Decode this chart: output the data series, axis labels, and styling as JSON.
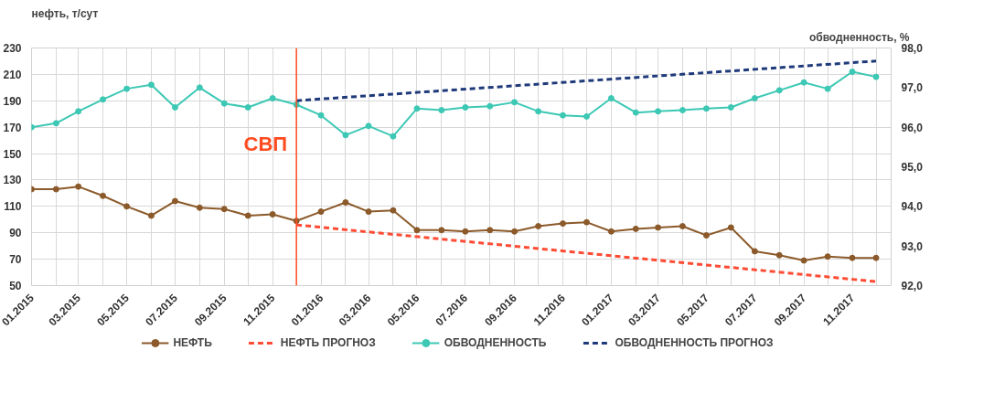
{
  "chart_data": {
    "type": "line",
    "ylabel": "нефть, т/сут",
    "y2label": "обводненность, %",
    "x": [
      "2015-01",
      "2015-02",
      "2015-03",
      "2015-04",
      "2015-05",
      "2015-06",
      "2015-07",
      "2015-08",
      "2015-09",
      "2015-10",
      "2015-11",
      "2015-12",
      "2016-01",
      "2016-02",
      "2016-03",
      "2016-04",
      "2016-05",
      "2016-06",
      "2016-07",
      "2016-08",
      "2016-09",
      "2016-10",
      "2016-11",
      "2016-12",
      "2017-01",
      "2017-02",
      "2017-03",
      "2017-04",
      "2017-05",
      "2017-06",
      "2017-07",
      "2017-08",
      "2017-09",
      "2017-10",
      "2017-11",
      "2017-12"
    ],
    "series": [
      {
        "name": "НЕФТЬ",
        "color": "#8c5a2a",
        "marker": "circle",
        "line_style": "solid",
        "values": [
          123,
          123,
          125,
          118,
          110,
          103,
          114,
          109,
          108,
          103,
          104,
          99,
          106,
          113,
          106,
          107,
          92,
          92,
          91,
          92,
          91,
          95,
          97,
          98,
          91,
          93,
          94,
          95,
          88,
          94,
          76,
          73,
          69,
          72,
          71,
          71
        ]
      },
      {
        "name": "НЕФТЬ ПРОГНОЗ",
        "color": "#ff4b33",
        "marker": "none",
        "line_style": "dashed",
        "x": [
          "2015-12",
          "2017-12"
        ],
        "values": [
          96,
          53
        ]
      },
      {
        "name": "ОБВОДНЕННОСТЬ",
        "color": "#3cc8b4",
        "marker": "circle",
        "line_style": "solid",
        "axis": "y2",
        "values": [
          96.0,
          96.1,
          96.4,
          96.7,
          96.97,
          97.07,
          96.5,
          97.0,
          96.6,
          96.5,
          96.73,
          96.57,
          96.3,
          95.8,
          96.03,
          95.77,
          96.47,
          96.43,
          96.5,
          96.53,
          96.63,
          96.4,
          96.3,
          96.27,
          96.73,
          96.37,
          96.4,
          96.43,
          96.47,
          96.5,
          96.73,
          96.93,
          97.13,
          96.97,
          97.4,
          97.27
        ]
      },
      {
        "name": "ОБВОДНЕННОСТЬ ПРОГНОЗ",
        "color": "#1f3a7a",
        "marker": "none",
        "line_style": "dashed",
        "axis": "y2",
        "x": [
          "2015-12",
          "2017-12"
        ],
        "values": [
          96.67,
          97.67
        ]
      }
    ],
    "xlim": [
      "2015-01-01",
      "2017-12-20"
    ],
    "xticks": [
      {
        "value": "2015-01",
        "label": "01.2015"
      },
      {
        "value": "2015-02",
        "label": null
      },
      {
        "value": "2015-03",
        "label": "03.2015"
      },
      {
        "value": "2015-04",
        "label": null
      },
      {
        "value": "2015-05",
        "label": "05.2015"
      },
      {
        "value": "2015-06",
        "label": null
      },
      {
        "value": "2015-07",
        "label": "07.2015"
      },
      {
        "value": "2015-08",
        "label": null
      },
      {
        "value": "2015-09",
        "label": "09.2015"
      },
      {
        "value": "2015-10",
        "label": null
      },
      {
        "value": "2015-11",
        "label": "11.2015"
      },
      {
        "value": "2015-12",
        "label": null
      },
      {
        "value": "2016-01",
        "label": "01.2016"
      },
      {
        "value": "2016-02",
        "label": null
      },
      {
        "value": "2016-03",
        "label": "03.2016"
      },
      {
        "value": "2016-04",
        "label": null
      },
      {
        "value": "2016-05",
        "label": "05.2016"
      },
      {
        "value": "2016-06",
        "label": null
      },
      {
        "value": "2016-07",
        "label": "07.2016"
      },
      {
        "value": "2016-08",
        "label": null
      },
      {
        "value": "2016-09",
        "label": "09.2016"
      },
      {
        "value": "2016-10",
        "label": null
      },
      {
        "value": "2016-11",
        "label": "11.2016"
      },
      {
        "value": "2016-12",
        "label": null
      },
      {
        "value": "2017-01",
        "label": "01.2017"
      },
      {
        "value": "2017-02",
        "label": null
      },
      {
        "value": "2017-03",
        "label": "03.2017"
      },
      {
        "value": "2017-04",
        "label": null
      },
      {
        "value": "2017-05",
        "label": "05.2017"
      },
      {
        "value": "2017-06",
        "label": null
      },
      {
        "value": "2017-07",
        "label": "07.2017"
      },
      {
        "value": "2017-08",
        "label": null
      },
      {
        "value": "2017-09",
        "label": "09.2017"
      },
      {
        "value": "2017-10",
        "label": null
      },
      {
        "value": "2017-11",
        "label": "11.2017"
      },
      {
        "value": "2017-12",
        "label": null
      }
    ],
    "ylim": [
      50,
      230
    ],
    "yticks": [
      50,
      70,
      90,
      110,
      130,
      150,
      170,
      190,
      210,
      230
    ],
    "y2lim": [
      92,
      98
    ],
    "y2ticks": [
      {
        "value": 92,
        "label": "92,0"
      },
      {
        "value": 93,
        "label": "93,0"
      },
      {
        "value": 94,
        "label": "94,0"
      },
      {
        "value": 95,
        "label": "95,0"
      },
      {
        "value": 96,
        "label": "96,0"
      },
      {
        "value": 97,
        "label": "97,0"
      },
      {
        "value": 98,
        "label": "98,0"
      }
    ],
    "ref_lines": [
      {
        "axis": "x",
        "value": "2015-12",
        "label": "СВП",
        "color": "#ff4b1f",
        "line_style": "solid"
      }
    ],
    "grid": true,
    "legend": "bottom"
  }
}
